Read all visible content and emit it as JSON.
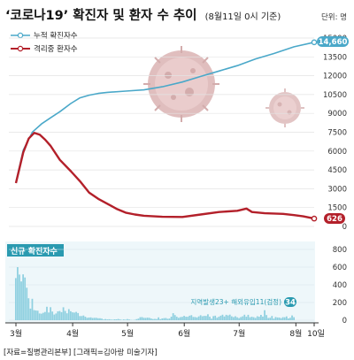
{
  "title": "‘코로나19’ 확진자 및 환자 수 추이",
  "subtitle": "(8월11일 0시 기준)",
  "unit_label": "단위: 명",
  "legend": {
    "cumulative": "누적 확진자수",
    "isolated": "격리중 환자수"
  },
  "new_cases_label": "신규 확진자수",
  "annotation": "지역발생23+ 해외유입11(검정)",
  "annotation_value": "34",
  "source": "[자료=질병관리본부] [그래픽=김아랑 미술기자]",
  "colors": {
    "cumulative": "#4aa8c9",
    "isolated": "#b3202a",
    "bars": "#8fd0e0",
    "panel_bg": "#eef7fa",
    "badge_new": "#2a9ab0"
  },
  "chart_data": [
    {
      "type": "line",
      "title": "‘코로나19’ 확진자 및 환자 수 추이",
      "x_range": [
        "2020-03-01",
        "2020-08-11"
      ],
      "x_ticks": [
        "3월",
        "4월",
        "5월",
        "6월",
        "7월",
        "8월",
        "10일"
      ],
      "y_ticks": [
        "0",
        "1500",
        "3000",
        "4500",
        "6000",
        "7500",
        "9000",
        "10500",
        "12000",
        "13500",
        "15000"
      ],
      "ylim": [
        0,
        15000
      ],
      "series": [
        {
          "name": "누적 확진자수",
          "last_label": "14,660",
          "points": [
            [
              "2020-03-01",
              3526
            ],
            [
              "2020-03-05",
              6088
            ],
            [
              "2020-03-10",
              7513
            ],
            [
              "2020-03-15",
              8162
            ],
            [
              "2020-03-20",
              8652
            ],
            [
              "2020-03-25",
              9137
            ],
            [
              "2020-03-31",
              9786
            ],
            [
              "2020-04-05",
              10237
            ],
            [
              "2020-04-10",
              10450
            ],
            [
              "2020-04-15",
              10591
            ],
            [
              "2020-04-20",
              10674
            ],
            [
              "2020-04-30",
              10774
            ],
            [
              "2020-05-10",
              10874
            ],
            [
              "2020-05-20",
              11122
            ],
            [
              "2020-05-31",
              11503
            ],
            [
              "2020-06-10",
              11947
            ],
            [
              "2020-06-20",
              12373
            ],
            [
              "2020-06-30",
              12800
            ],
            [
              "2020-07-10",
              13338
            ],
            [
              "2020-07-20",
              13771
            ],
            [
              "2020-07-31",
              14305
            ],
            [
              "2020-08-11",
              14660
            ]
          ]
        },
        {
          "name": "격리중 환자수",
          "last_label": "626",
          "points": [
            [
              "2020-03-01",
              3450
            ],
            [
              "2020-03-05",
              5900
            ],
            [
              "2020-03-08",
              7000
            ],
            [
              "2020-03-11",
              7450
            ],
            [
              "2020-03-14",
              7300
            ],
            [
              "2020-03-17",
              6900
            ],
            [
              "2020-03-20",
              6400
            ],
            [
              "2020-03-25",
              5300
            ],
            [
              "2020-03-31",
              4400
            ],
            [
              "2020-04-05",
              3600
            ],
            [
              "2020-04-10",
              2700
            ],
            [
              "2020-04-15",
              2200
            ],
            [
              "2020-04-20",
              1800
            ],
            [
              "2020-04-25",
              1400
            ],
            [
              "2020-04-30",
              1100
            ],
            [
              "2020-05-05",
              950
            ],
            [
              "2020-05-10",
              850
            ],
            [
              "2020-05-20",
              770
            ],
            [
              "2020-05-31",
              750
            ],
            [
              "2020-06-10",
              950
            ],
            [
              "2020-06-20",
              1150
            ],
            [
              "2020-06-30",
              1250
            ],
            [
              "2020-07-05",
              1420
            ],
            [
              "2020-07-08",
              1150
            ],
            [
              "2020-07-15",
              1050
            ],
            [
              "2020-07-25",
              1000
            ],
            [
              "2020-07-31",
              900
            ],
            [
              "2020-08-05",
              800
            ],
            [
              "2020-08-11",
              626
            ]
          ]
        }
      ]
    },
    {
      "type": "bar",
      "title": "신규 확진자수",
      "y_ticks": [
        "0",
        "200",
        "400",
        "600",
        "800"
      ],
      "ylim": [
        0,
        800
      ],
      "start_date": "2020-03-01",
      "values": [
        476,
        600,
        516,
        438,
        518,
        483,
        367,
        248,
        131,
        242,
        114,
        110,
        107,
        76,
        74,
        84,
        93,
        152,
        87,
        147,
        98,
        64,
        76,
        100,
        104,
        91,
        146,
        105,
        78,
        125,
        101,
        89,
        86,
        94,
        81,
        47,
        47,
        53,
        39,
        27,
        30,
        32,
        25,
        27,
        27,
        22,
        22,
        18,
        8,
        13,
        9,
        11,
        8,
        6,
        10,
        10,
        14,
        9,
        4,
        9,
        6,
        13,
        8,
        3,
        2,
        4,
        12,
        18,
        34,
        35,
        27,
        26,
        29,
        27,
        19,
        13,
        15,
        13,
        32,
        12,
        20,
        23,
        25,
        16,
        19,
        40,
        79,
        58,
        39,
        27,
        35,
        38,
        49,
        39,
        39,
        51,
        57,
        37,
        36,
        31,
        43,
        56,
        45,
        49,
        48,
        67,
        39,
        17,
        46,
        51,
        28,
        39,
        51,
        62,
        42,
        61,
        54,
        63,
        44,
        35,
        45,
        33,
        24,
        35,
        44,
        62,
        39,
        61,
        33,
        39,
        34,
        26,
        45,
        39,
        60,
        41,
        113,
        58,
        25,
        28,
        48,
        18,
        36,
        31,
        30,
        23,
        34,
        33,
        43,
        20,
        28,
        54,
        34
      ]
    }
  ]
}
